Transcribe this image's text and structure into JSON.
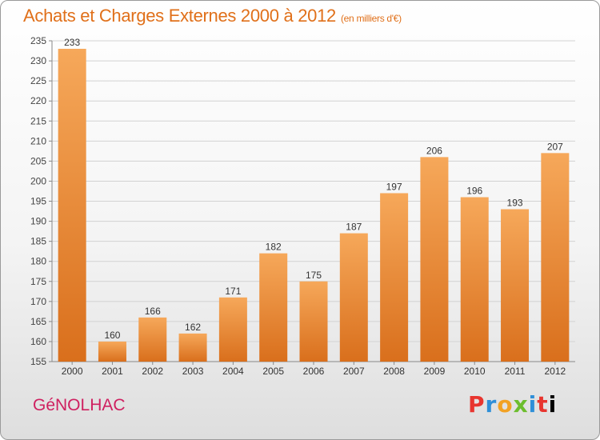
{
  "chart_data": {
    "type": "bar",
    "title": "Achats et Charges Externes 2000 à 2012",
    "subtitle": "(en milliers d'€)",
    "categories": [
      "2000",
      "2001",
      "2002",
      "2003",
      "2004",
      "2005",
      "2006",
      "2007",
      "2008",
      "2009",
      "2010",
      "2011",
      "2012"
    ],
    "values": [
      233,
      160,
      166,
      162,
      171,
      182,
      175,
      187,
      197,
      206,
      196,
      193,
      207
    ],
    "ylim": [
      155,
      235
    ],
    "yticks": [
      155,
      160,
      165,
      170,
      175,
      180,
      185,
      190,
      195,
      200,
      205,
      210,
      215,
      220,
      225,
      230,
      235
    ],
    "grid": "horizontal",
    "bar_color": "#e8802a"
  },
  "footer": {
    "commune": "GéNOLHAC",
    "logo_text": "Proxiti"
  }
}
